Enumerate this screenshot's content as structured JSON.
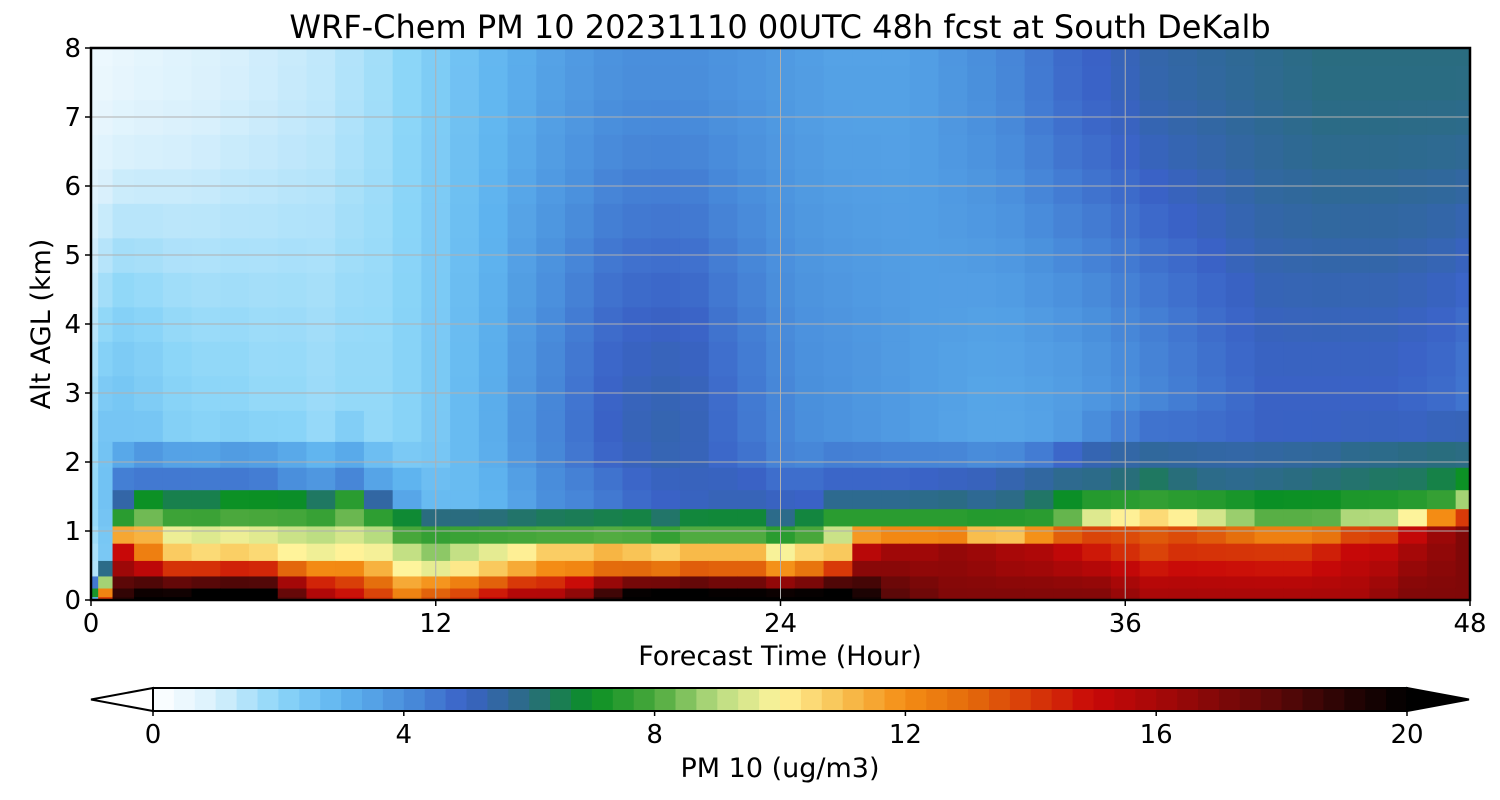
{
  "chart_data": {
    "type": "heatmap",
    "title": "WRF-Chem PM 10  20231110 00UTC 48h fcst at South DeKalb",
    "xlabel": "Forecast Time (Hour)",
    "ylabel": "Alt AGL (km)",
    "xlim": [
      0,
      48
    ],
    "ylim": [
      0,
      8
    ],
    "xticks": [
      0,
      12,
      24,
      36,
      48
    ],
    "yticks": [
      0,
      1,
      2,
      3,
      4,
      5,
      6,
      7,
      8
    ],
    "grid": true,
    "x_hours": [
      0,
      0.5,
      1,
      2,
      3,
      4,
      5,
      6,
      7,
      8,
      9,
      10,
      11,
      12,
      13,
      14,
      15,
      16,
      17,
      18,
      19,
      20,
      21,
      22,
      23,
      24,
      25,
      26,
      27,
      28,
      29,
      30,
      31,
      32,
      33,
      34,
      35,
      36,
      37,
      38,
      39,
      40,
      41,
      42,
      43,
      44,
      45,
      46,
      47,
      48
    ],
    "y_km": [
      0,
      0.1,
      0.25,
      0.45,
      0.7,
      0.95,
      1.2,
      1.45,
      1.75,
      2.1,
      2.5,
      3,
      3.5,
      4,
      4.5,
      5,
      5.5,
      6,
      6.5,
      7,
      7.5,
      8
    ],
    "profile_params": {
      "sfc": [
        3,
        14,
        19,
        20,
        20,
        20.5,
        20.5,
        20.5,
        18,
        16,
        15,
        14,
        12.5,
        13.5,
        14,
        15,
        16,
        16,
        17,
        19,
        20.5,
        21,
        21,
        20.5,
        20.5,
        20.5,
        20.5,
        21,
        19.5,
        18,
        17.5,
        17,
        17,
        17,
        17,
        17,
        17,
        16.5,
        16,
        16,
        16,
        16,
        16,
        16,
        16,
        16,
        16.5,
        17,
        17,
        17
      ],
      "mid": [
        2.5,
        11,
        15,
        12,
        10.5,
        10.2,
        10.2,
        10,
        9.6,
        9.6,
        9.5,
        9.8,
        9.2,
        8.7,
        9.3,
        9.8,
        10.3,
        11,
        11,
        11.5,
        11.2,
        11.2,
        11.4,
        11.4,
        11.4,
        10.8,
        10.8,
        10.8,
        15.5,
        16.2,
        16.2,
        16.5,
        16.3,
        16,
        15.8,
        15.2,
        14.5,
        14,
        13.5,
        14,
        14,
        14,
        14,
        14,
        14.5,
        15,
        15.2,
        16,
        16.5,
        17
      ],
      "top": [
        0.05,
        0.3,
        1.2,
        1.35,
        1.3,
        1.3,
        1.35,
        1.35,
        1.35,
        1.3,
        1.45,
        1.25,
        1.1,
        1.05,
        1.05,
        1.05,
        1.05,
        1.05,
        1.05,
        1.05,
        1.05,
        1.0,
        1.05,
        1.05,
        1.05,
        0.95,
        1.05,
        1.2,
        1.2,
        1.2,
        1.2,
        1.2,
        1.15,
        1.15,
        1.2,
        1.3,
        1.4,
        1.45,
        1.5,
        1.45,
        1.4,
        1.35,
        1.3,
        1.3,
        1.3,
        1.35,
        1.35,
        1.4,
        1.5,
        1.6
      ],
      "blue": [
        1.5,
        2.4,
        4.5,
        4.5,
        4.5,
        4.5,
        4.5,
        4.4,
        4.0,
        3.8,
        3.6,
        3.5,
        3.2,
        2.8,
        2.8,
        3.0,
        3.5,
        4.0,
        4.2,
        4.5,
        4.8,
        5.0,
        5.1,
        5.2,
        5.2,
        5.1,
        5.0,
        5.0,
        5.0,
        5.0,
        5.1,
        5.2,
        5.4,
        5.6,
        5.7,
        5.8,
        5.8,
        5.8,
        5.8,
        5.8,
        5.8,
        5.8,
        5.9,
        6.0,
        6.1,
        6.2,
        6.3,
        6.3,
        6.2,
        6.0
      ],
      "hb": [
        1.9,
        2.6,
        2.5,
        2.3,
        2.1,
        2.0,
        2.0,
        1.9,
        1.9,
        1.8,
        1.9,
        1.9,
        2.1,
        2.4,
        2.8,
        3.2,
        3.8,
        4.2,
        4.6,
        5.0,
        5.2,
        5.3,
        5.2,
        4.8,
        4.5,
        4.2,
        4.0,
        3.9,
        3.8,
        3.7,
        3.6,
        3.5,
        3.4,
        3.4,
        3.5,
        3.6,
        3.8,
        4.0,
        4.2,
        4.4,
        4.6,
        4.8,
        5.0,
        5.0,
        5.0,
        5.0,
        5.0,
        4.9,
        4.8,
        4.6
      ],
      "hs": [
        0.5,
        0.5,
        0.6,
        0.7,
        0.8,
        0.9,
        1.0,
        1.1,
        1.2,
        1.3,
        1.5,
        1.7,
        2.0,
        2.3,
        2.6,
        2.9,
        3.2,
        3.5,
        3.7,
        3.9,
        4.0,
        4.0,
        4.0,
        3.9,
        3.8,
        3.7,
        3.6,
        3.5,
        3.5,
        3.5,
        3.6,
        3.8,
        4.0,
        4.2,
        4.5,
        4.8,
        5.0,
        5.2,
        5.4,
        5.5,
        5.6,
        5.7,
        5.8,
        5.9,
        6.0,
        6.0,
        6.0,
        6.0,
        6.0,
        6.0
      ]
    },
    "colorbar": {
      "label": "PM 10  (ug/m3)",
      "min": 0,
      "max": 20,
      "ticks": [
        0,
        4,
        8,
        12,
        16,
        20
      ],
      "extend": "both",
      "stops": [
        {
          "v": 0,
          "c": "#ffffff"
        },
        {
          "v": 1,
          "c": "#d8f0fc"
        },
        {
          "v": 2,
          "c": "#8cd6f8"
        },
        {
          "v": 3,
          "c": "#5fb4ef"
        },
        {
          "v": 4,
          "c": "#4a8fdc"
        },
        {
          "v": 5,
          "c": "#3a62c6"
        },
        {
          "v": 6,
          "c": "#2a6c80"
        },
        {
          "v": 7,
          "c": "#0a9024"
        },
        {
          "v": 8,
          "c": "#4aa83c"
        },
        {
          "v": 9,
          "c": "#b8dc80"
        },
        {
          "v": 10,
          "c": "#fff49c"
        },
        {
          "v": 11,
          "c": "#f8c050"
        },
        {
          "v": 12,
          "c": "#f48c14"
        },
        {
          "v": 13,
          "c": "#e46c0c"
        },
        {
          "v": 14,
          "c": "#d83a08"
        },
        {
          "v": 15,
          "c": "#c80808"
        },
        {
          "v": 16,
          "c": "#a80808"
        },
        {
          "v": 17,
          "c": "#800808"
        },
        {
          "v": 18,
          "c": "#580808"
        },
        {
          "v": 19,
          "c": "#280404"
        },
        {
          "v": 20,
          "c": "#000000"
        }
      ]
    }
  }
}
